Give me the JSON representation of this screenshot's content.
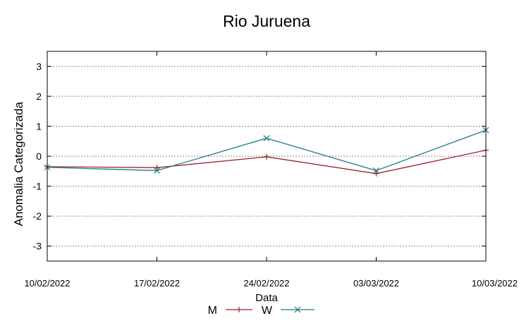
{
  "chart_data": {
    "type": "line",
    "title": "Rio Juruena",
    "xlabel": "Data",
    "ylabel": "Anomalia Categorizada",
    "categories": [
      "10/02/2022",
      "17/02/2022",
      "24/02/2022",
      "03/03/2022",
      "10/03/2022"
    ],
    "ylim": [
      -3.5,
      3.5
    ],
    "yticks": [
      "-3",
      "-2",
      "-1",
      "0",
      "1",
      "2",
      "3"
    ],
    "grid": true,
    "legend_position": "bottom-center",
    "series": [
      {
        "name": "M",
        "values": [
          -0.35,
          -0.38,
          -0.02,
          -0.58,
          0.2
        ],
        "color": "#a0202a",
        "marker": "plus"
      },
      {
        "name": "W",
        "values": [
          -0.37,
          -0.48,
          0.6,
          -0.48,
          0.87
        ],
        "color": "#1e7b86",
        "marker": "cross"
      }
    ]
  }
}
